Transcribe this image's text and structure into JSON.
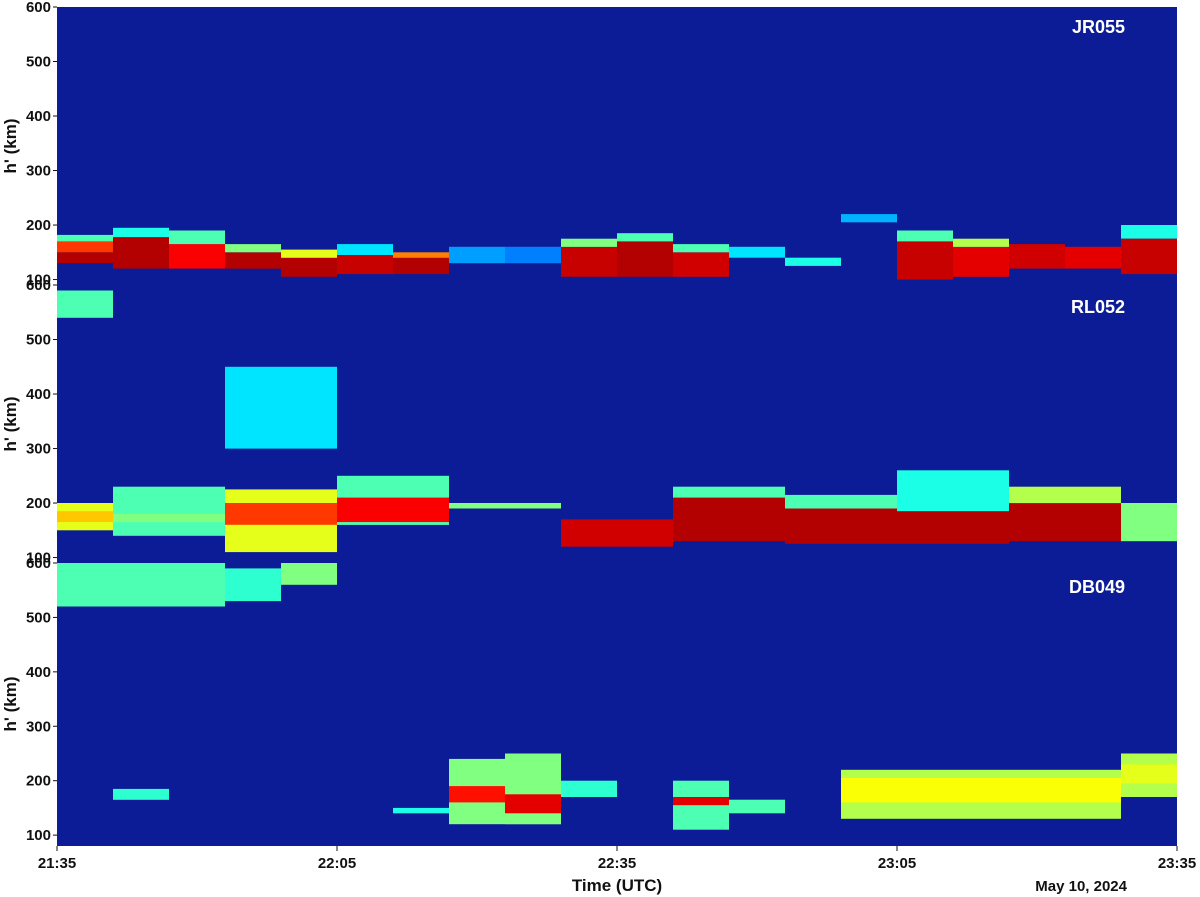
{
  "chart_data": [
    {
      "type": "heatmap",
      "station": "JR055",
      "ylabel": "h' (km)",
      "ylim": [
        90,
        600
      ],
      "yticks": [
        100,
        200,
        300,
        400,
        500,
        600
      ],
      "xlim": [
        "21:35",
        "23:35"
      ],
      "columns": [
        {
          "start": "21:35",
          "end": "21:41",
          "bands": [
            [
              130,
              150,
              0.95
            ],
            [
              150,
              170,
              0.82
            ],
            [
              170,
              182,
              0.45
            ]
          ]
        },
        {
          "start": "21:41",
          "end": "21:47",
          "bands": [
            [
              120,
              178,
              0.95
            ],
            [
              178,
              195,
              0.4
            ]
          ]
        },
        {
          "start": "21:47",
          "end": "21:53",
          "bands": [
            [
              120,
              165,
              0.88
            ],
            [
              165,
              190,
              0.45
            ]
          ]
        },
        {
          "start": "21:53",
          "end": "21:59",
          "bands": [
            [
              120,
              150,
              0.95
            ],
            [
              150,
              165,
              0.5
            ]
          ]
        },
        {
          "start": "21:59",
          "end": "22:05",
          "bands": [
            [
              105,
              140,
              0.95
            ],
            [
              140,
              155,
              0.6
            ]
          ]
        },
        {
          "start": "22:05",
          "end": "22:11",
          "bands": [
            [
              110,
              145,
              0.93
            ],
            [
              145,
              165,
              0.35
            ]
          ]
        },
        {
          "start": "22:11",
          "end": "22:17",
          "bands": [
            [
              110,
              140,
              0.95
            ],
            [
              140,
              150,
              0.75
            ]
          ]
        },
        {
          "start": "22:17",
          "end": "22:23",
          "bands": [
            [
              130,
              160,
              0.28
            ]
          ]
        },
        {
          "start": "22:23",
          "end": "22:29",
          "bands": [
            [
              130,
              160,
              0.25
            ]
          ]
        },
        {
          "start": "22:29",
          "end": "22:35",
          "bands": [
            [
              105,
              160,
              0.93
            ],
            [
              160,
              175,
              0.5
            ]
          ]
        },
        {
          "start": "22:35",
          "end": "22:41",
          "bands": [
            [
              105,
              170,
              0.95
            ],
            [
              170,
              185,
              0.45
            ]
          ]
        },
        {
          "start": "22:41",
          "end": "22:47",
          "bands": [
            [
              105,
              150,
              0.92
            ],
            [
              150,
              165,
              0.45
            ]
          ]
        },
        {
          "start": "22:47",
          "end": "22:53",
          "bands": [
            [
              140,
              160,
              0.35
            ]
          ]
        },
        {
          "start": "22:53",
          "end": "22:59",
          "bands": [
            [
              125,
              140,
              0.4
            ]
          ]
        },
        {
          "start": "22:59",
          "end": "23:05",
          "bands": [
            [
              205,
              220,
              0.3
            ]
          ]
        },
        {
          "start": "23:05",
          "end": "23:11",
          "bands": [
            [
              100,
              170,
              0.93
            ],
            [
              170,
              190,
              0.45
            ]
          ]
        },
        {
          "start": "23:11",
          "end": "23:17",
          "bands": [
            [
              105,
              160,
              0.9
            ],
            [
              160,
              175,
              0.55
            ]
          ]
        },
        {
          "start": "23:17",
          "end": "23:23",
          "bands": [
            [
              120,
              165,
              0.92
            ]
          ]
        },
        {
          "start": "23:23",
          "end": "23:29",
          "bands": [
            [
              120,
              160,
              0.9
            ]
          ]
        },
        {
          "start": "23:29",
          "end": "23:35",
          "bands": [
            [
              110,
              175,
              0.93
            ],
            [
              175,
              200,
              0.4
            ]
          ]
        }
      ]
    },
    {
      "type": "heatmap",
      "station": "RL052",
      "ylabel": "h' (km)",
      "ylim": [
        90,
        600
      ],
      "yticks": [
        100,
        200,
        300,
        400,
        500,
        600
      ],
      "xlim": [
        "21:35",
        "23:35"
      ],
      "columns": [
        {
          "start": "21:35",
          "end": "21:41",
          "bands": [
            [
              150,
              200,
              0.6
            ],
            [
              165,
              185,
              0.68
            ],
            [
              540,
              590,
              0.45
            ]
          ]
        },
        {
          "start": "21:41",
          "end": "21:53",
          "bands": [
            [
              140,
              230,
              0.45
            ],
            [
              165,
              180,
              0.5
            ]
          ]
        },
        {
          "start": "21:53",
          "end": "22:05",
          "bands": [
            [
              110,
              225,
              0.6
            ],
            [
              160,
              200,
              0.82
            ],
            [
              300,
              450,
              0.35
            ]
          ]
        },
        {
          "start": "22:05",
          "end": "22:17",
          "bands": [
            [
              160,
              250,
              0.45
            ],
            [
              165,
              210,
              0.88
            ]
          ]
        },
        {
          "start": "22:17",
          "end": "22:29",
          "bands": [
            [
              190,
              200,
              0.5
            ]
          ]
        },
        {
          "start": "22:29",
          "end": "22:41",
          "bands": [
            [
              120,
              170,
              0.92
            ]
          ]
        },
        {
          "start": "22:41",
          "end": "22:53",
          "bands": [
            [
              130,
              220,
              0.95
            ],
            [
              210,
              230,
              0.45
            ]
          ]
        },
        {
          "start": "22:53",
          "end": "23:05",
          "bands": [
            [
              125,
              190,
              0.95
            ],
            [
              190,
              215,
              0.45
            ]
          ]
        },
        {
          "start": "23:05",
          "end": "23:17",
          "bands": [
            [
              125,
              185,
              0.95
            ],
            [
              185,
              260,
              0.4
            ]
          ]
        },
        {
          "start": "23:17",
          "end": "23:29",
          "bands": [
            [
              130,
              200,
              0.95
            ],
            [
              200,
              230,
              0.55
            ]
          ]
        },
        {
          "start": "23:29",
          "end": "23:35",
          "bands": [
            [
              130,
              200,
              0.5
            ]
          ]
        }
      ]
    },
    {
      "type": "heatmap",
      "station": "DB049",
      "ylabel": "h' (km)",
      "ylim": [
        80,
        600
      ],
      "yticks": [
        100,
        200,
        300,
        400,
        500,
        600
      ],
      "xlim": [
        "21:35",
        "23:35"
      ],
      "columns": [
        {
          "start": "21:35",
          "end": "21:53",
          "bands": [
            [
              520,
              600,
              0.45
            ]
          ]
        },
        {
          "start": "21:41",
          "end": "21:47",
          "bands": [
            [
              165,
              185,
              0.42
            ]
          ]
        },
        {
          "start": "21:53",
          "end": "21:59",
          "bands": [
            [
              530,
              590,
              0.42
            ]
          ]
        },
        {
          "start": "21:59",
          "end": "22:05",
          "bands": [
            [
              560,
              600,
              0.5
            ]
          ]
        },
        {
          "start": "22:11",
          "end": "22:17",
          "bands": [
            [
              140,
              150,
              0.4
            ]
          ]
        },
        {
          "start": "22:17",
          "end": "22:23",
          "bands": [
            [
              120,
              240,
              0.5
            ],
            [
              160,
              190,
              0.86
            ]
          ]
        },
        {
          "start": "22:23",
          "end": "22:29",
          "bands": [
            [
              120,
              250,
              0.5
            ],
            [
              140,
              175,
              0.9
            ]
          ]
        },
        {
          "start": "22:29",
          "end": "22:35",
          "bands": [
            [
              170,
              200,
              0.42
            ]
          ]
        },
        {
          "start": "22:41",
          "end": "22:47",
          "bands": [
            [
              110,
              200,
              0.45
            ],
            [
              155,
              170,
              0.9
            ]
          ]
        },
        {
          "start": "22:47",
          "end": "22:53",
          "bands": [
            [
              140,
              165,
              0.45
            ]
          ]
        },
        {
          "start": "22:59",
          "end": "23:29",
          "bands": [
            [
              130,
              220,
              0.55
            ],
            [
              160,
              205,
              0.62
            ]
          ]
        },
        {
          "start": "23:29",
          "end": "23:35",
          "bands": [
            [
              170,
              250,
              0.55
            ],
            [
              195,
              230,
              0.6
            ]
          ]
        }
      ]
    }
  ],
  "xaxis": {
    "ticks": [
      "21:35",
      "22:05",
      "22:35",
      "23:05",
      "23:35"
    ],
    "label": "Time (UTC)",
    "date_label": "May 10, 2024"
  },
  "colors": {
    "background_field": "#0c1c96",
    "colormap": "jet"
  }
}
